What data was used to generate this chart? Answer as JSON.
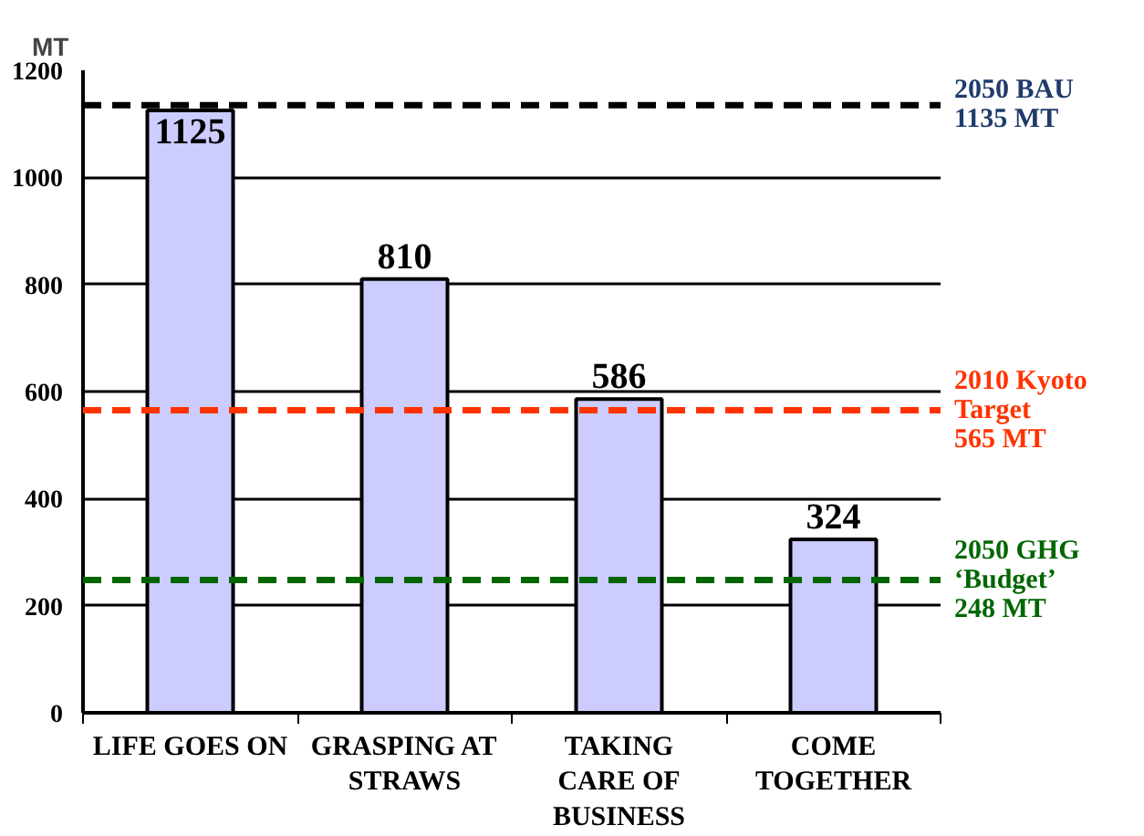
{
  "chart_data": {
    "type": "bar",
    "ylabel": "MT",
    "categories": [
      "LIFE GOES ON",
      "GRASPING AT\nSTRAWS",
      "TAKING\nCARE OF\nBUSINESS",
      "COME\nTOGETHER"
    ],
    "values": [
      1125,
      810,
      586,
      324
    ],
    "color": "#ccccff",
    "data_labels": true,
    "ylim": [
      0,
      1200
    ],
    "yticks": [
      0,
      200,
      400,
      600,
      800,
      1000,
      1200
    ],
    "grid": "y",
    "legend": false,
    "ref_lines": [
      {
        "axis": "y",
        "value": 1135,
        "label": "2050 BAU\n1135 MT",
        "color": "#000000",
        "line_style": "dashed"
      },
      {
        "axis": "y",
        "value": 565,
        "label": "2010 Kyoto\nTarget\n565 MT",
        "color": "#ff3300",
        "line_style": "dashed"
      },
      {
        "axis": "y",
        "value": 248,
        "label": "2050 GHG\n‘Budget’\n248 MT",
        "color": "#006600",
        "line_style": "dashed"
      }
    ]
  }
}
